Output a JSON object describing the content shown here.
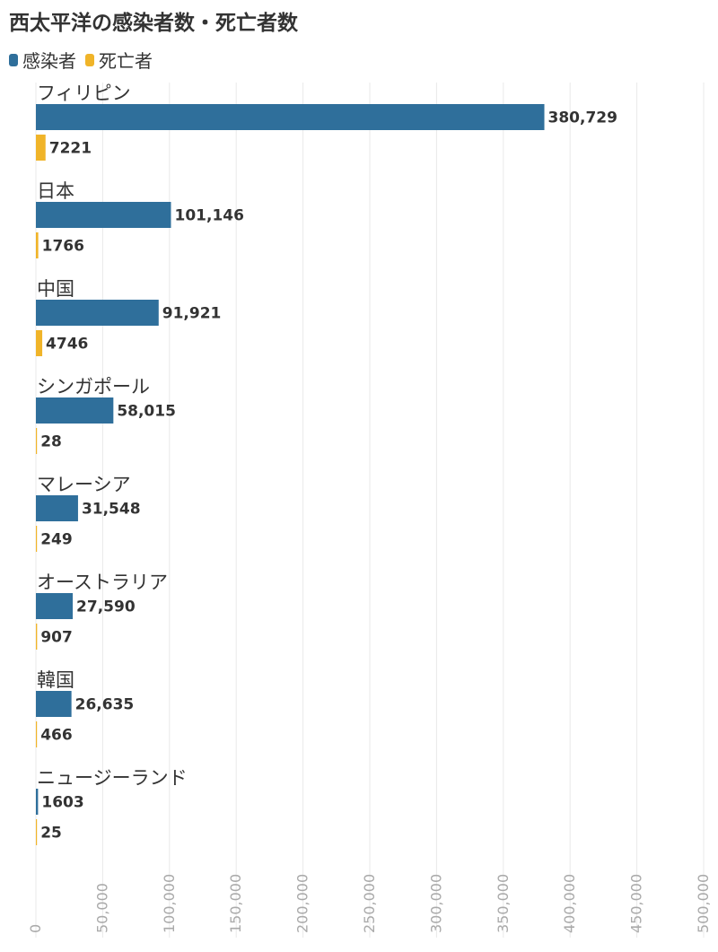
{
  "chart_data": {
    "type": "bar",
    "orientation": "horizontal",
    "title": "西太平洋の感染者数・死亡者数",
    "categories": [
      "フィリピン",
      "日本",
      "中国",
      "シンガポール",
      "マレーシア",
      "オーストラリア",
      "韓国",
      "ニュージーランド"
    ],
    "series": [
      {
        "name": "感染者",
        "color": "#2f6f9b",
        "values": [
          380729,
          101146,
          91921,
          58015,
          31548,
          27590,
          26635,
          1603
        ],
        "labels": [
          "380,729",
          "101,146",
          "91,921",
          "58,015",
          "31,548",
          "27,590",
          "26,635",
          "1603"
        ]
      },
      {
        "name": "死亡者",
        "color": "#f0b429",
        "values": [
          7221,
          1766,
          4746,
          28,
          249,
          907,
          466,
          25
        ],
        "labels": [
          "7221",
          "1766",
          "4746",
          "28",
          "249",
          "907",
          "466",
          "25"
        ]
      }
    ],
    "xlim": [
      0,
      500000
    ],
    "xticks": [
      0,
      50000,
      100000,
      150000,
      200000,
      250000,
      300000,
      350000,
      400000,
      450000,
      500000
    ],
    "xtick_labels": [
      "0",
      "50,000",
      "100,000",
      "150,000",
      "200,000",
      "250,000",
      "300,000",
      "350,000",
      "400,000",
      "450,000",
      "500,000"
    ],
    "grid": true,
    "legend_position": "top-left"
  }
}
